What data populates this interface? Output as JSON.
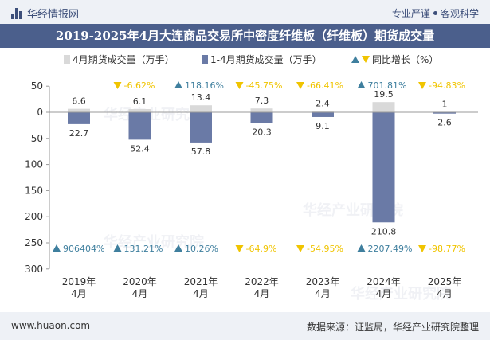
{
  "header": {
    "brand": "华经情报网",
    "tagline_left": "专业严谨",
    "tagline_right": "客观科学"
  },
  "watermark": "华经产业研究院",
  "footer": {
    "website": "www.huaon.com",
    "source": "数据来源：证监局，华经产业研究院整理"
  },
  "colors": {
    "monthly_bar": "#d9d9d9",
    "cumulative_bar": "#6a7aa6",
    "growth_up": "#3f7f9e",
    "growth_down": "#f0c400",
    "title_bg": "#4b5f8c"
  },
  "chart_data": {
    "type": "bar",
    "title": "2019-2025年4月大连商品交易所中密度纤维板（纤维板）期货成交量",
    "categories": [
      [
        "2019年",
        "4月"
      ],
      [
        "2020年",
        "4月"
      ],
      [
        "2021年",
        "4月"
      ],
      [
        "2022年",
        "4月"
      ],
      [
        "2023年",
        "4月"
      ],
      [
        "2024年",
        "4月"
      ],
      [
        "2025年",
        "4月"
      ]
    ],
    "series": [
      {
        "name": "4月期货成交量（万手）",
        "values": [
          6.6,
          6.1,
          13.4,
          7.3,
          2.4,
          19.5,
          1
        ],
        "labels": [
          "6.6",
          "6.1",
          "13.4",
          "7.3",
          "2.4",
          "19.5",
          "1"
        ],
        "growth_labels": [
          "-6.62%",
          "118.16%",
          "-45.75%",
          "-66.41%",
          "701.81%",
          "-94.83%"
        ],
        "growth_direction": [
          "down",
          "up",
          "down",
          "down",
          "up",
          "down"
        ]
      },
      {
        "name": "1-4月期货成交量（万手）",
        "values": [
          22.7,
          52.4,
          57.8,
          20.3,
          9.1,
          210.8,
          2.6
        ],
        "labels": [
          "22.7",
          "52.4",
          "57.8",
          "20.3",
          "9.1",
          "210.8",
          "2.6"
        ],
        "growth_labels": [
          "906404%",
          "131.21%",
          "10.26%",
          "-64.9%",
          "-54.95%",
          "2207.49%",
          "-98.77%"
        ],
        "growth_direction": [
          "up",
          "up",
          "up",
          "down",
          "down",
          "up",
          "down"
        ]
      }
    ],
    "legend": [
      "4月期货成交量（万手）",
      "1-4月期货成交量（万手）",
      "同比增长（%）"
    ],
    "yaxis": {
      "inverted": true,
      "range": [
        -50,
        300
      ],
      "ticks": [
        50,
        0,
        50,
        100,
        150,
        200,
        250,
        300
      ],
      "tick_values": [
        -50,
        0,
        50,
        100,
        150,
        200,
        250,
        300
      ]
    },
    "grid": false,
    "legend_position": "top"
  }
}
